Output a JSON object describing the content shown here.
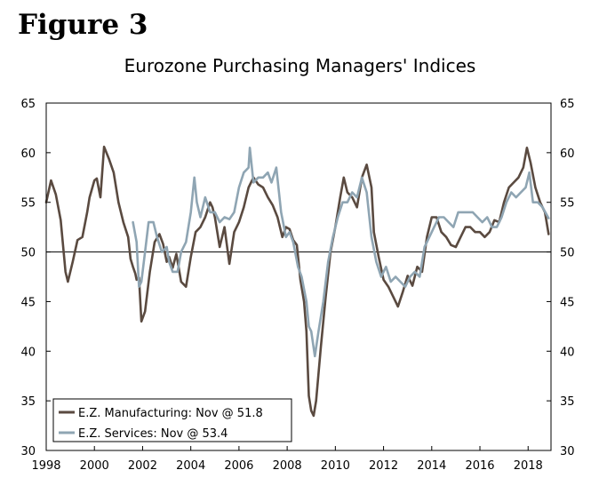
{
  "figure_label": "Figure 3",
  "chart_data": {
    "type": "line",
    "title": "Eurozone Purchasing Managers' Indices",
    "xlabel": "",
    "ylabel": "",
    "xlim": [
      1998,
      2018.95
    ],
    "ylim": [
      30,
      65
    ],
    "y_ticks": [
      30,
      35,
      40,
      45,
      50,
      55,
      60,
      65
    ],
    "x_ticks": [
      1998,
      2000,
      2002,
      2004,
      2006,
      2008,
      2010,
      2012,
      2014,
      2016,
      2018
    ],
    "reference_line": 50,
    "grid": false,
    "legend_position": "bottom-left",
    "series": [
      {
        "name": "E.Z. Manufacturing: Nov @ 51.8",
        "color": "#5a4a40",
        "x": [
          1998.0,
          1998.2,
          1998.4,
          1998.6,
          1998.8,
          1998.9,
          1999.1,
          1999.3,
          1999.5,
          1999.7,
          1999.8,
          2000.0,
          2000.1,
          2000.25,
          2000.4,
          2000.6,
          2000.8,
          2001.0,
          2001.2,
          2001.4,
          2001.5,
          2001.6,
          2001.7,
          2001.75,
          2001.85,
          2001.95,
          2002.1,
          2002.3,
          2002.5,
          2002.7,
          2002.85,
          2003.0,
          2003.1,
          2003.25,
          2003.4,
          2003.6,
          2003.8,
          2004.0,
          2004.2,
          2004.4,
          2004.6,
          2004.8,
          2004.9,
          2005.0,
          2005.2,
          2005.4,
          2005.6,
          2005.8,
          2006.0,
          2006.2,
          2006.4,
          2006.6,
          2006.8,
          2007.0,
          2007.2,
          2007.4,
          2007.6,
          2007.8,
          2007.95,
          2008.1,
          2008.25,
          2008.4,
          2008.55,
          2008.7,
          2008.8,
          2008.9,
          2009.0,
          2009.1,
          2009.2,
          2009.4,
          2009.6,
          2009.8,
          2010.0,
          2010.2,
          2010.35,
          2010.5,
          2010.7,
          2010.9,
          2011.1,
          2011.3,
          2011.5,
          2011.6,
          2011.8,
          2012.0,
          2012.2,
          2012.4,
          2012.6,
          2012.8,
          2013.0,
          2013.2,
          2013.4,
          2013.6,
          2013.8,
          2014.0,
          2014.2,
          2014.4,
          2014.6,
          2014.8,
          2015.0,
          2015.2,
          2015.4,
          2015.6,
          2015.8,
          2016.0,
          2016.2,
          2016.4,
          2016.6,
          2016.8,
          2017.0,
          2017.2,
          2017.4,
          2017.6,
          2017.8,
          2017.95,
          2018.1,
          2018.3,
          2018.5,
          2018.7,
          2018.85
        ],
        "values": [
          55.0,
          57.2,
          55.8,
          53.2,
          48.0,
          47.0,
          49.0,
          51.2,
          51.5,
          54.0,
          55.5,
          57.2,
          57.4,
          55.5,
          60.6,
          59.4,
          58.0,
          55.0,
          53.0,
          51.5,
          49.3,
          48.5,
          47.8,
          47.2,
          47.4,
          43.0,
          44.0,
          48.0,
          51.0,
          51.8,
          50.8,
          49.0,
          49.5,
          48.4,
          49.8,
          47.0,
          46.5,
          49.5,
          52.0,
          52.5,
          53.5,
          55.0,
          54.5,
          53.5,
          50.5,
          52.5,
          48.8,
          52.0,
          53.0,
          54.5,
          56.5,
          57.5,
          56.8,
          56.5,
          55.5,
          54.7,
          53.5,
          51.5,
          52.5,
          52.3,
          51.2,
          50.7,
          47.2,
          45.0,
          42.0,
          35.5,
          34.0,
          33.5,
          35.0,
          40.5,
          45.5,
          50.0,
          52.5,
          55.5,
          57.5,
          56.0,
          55.5,
          54.5,
          57.5,
          58.8,
          56.5,
          52.0,
          49.5,
          47.2,
          46.5,
          45.5,
          44.5,
          46.0,
          47.6,
          46.6,
          48.5,
          48.0,
          51.5,
          53.5,
          53.5,
          52.0,
          51.5,
          50.7,
          50.5,
          51.5,
          52.5,
          52.5,
          52.0,
          52.0,
          51.5,
          52.0,
          53.2,
          53.0,
          55.0,
          56.5,
          57.0,
          57.5,
          58.5,
          60.5,
          59.0,
          56.5,
          55.0,
          54.0,
          51.8
        ]
      },
      {
        "name": "E.Z. Services: Nov @ 53.4",
        "color": "#8fa5b3",
        "x": [
          2001.6,
          2001.75,
          2001.85,
          2001.95,
          2002.1,
          2002.25,
          2002.45,
          2002.6,
          2002.8,
          2003.0,
          2003.1,
          2003.25,
          2003.45,
          2003.6,
          2003.8,
          2004.0,
          2004.15,
          2004.25,
          2004.4,
          2004.6,
          2004.8,
          2005.0,
          2005.2,
          2005.4,
          2005.6,
          2005.8,
          2006.0,
          2006.2,
          2006.4,
          2006.45,
          2006.6,
          2006.8,
          2007.0,
          2007.2,
          2007.35,
          2007.55,
          2007.75,
          2007.95,
          2008.1,
          2008.25,
          2008.45,
          2008.6,
          2008.8,
          2008.9,
          2009.0,
          2009.15,
          2009.3,
          2009.5,
          2009.7,
          2009.9,
          2010.1,
          2010.3,
          2010.5,
          2010.7,
          2010.9,
          2011.1,
          2011.3,
          2011.5,
          2011.7,
          2011.9,
          2012.1,
          2012.3,
          2012.5,
          2012.7,
          2012.9,
          2013.1,
          2013.3,
          2013.5,
          2013.7,
          2013.9,
          2014.1,
          2014.3,
          2014.5,
          2014.7,
          2014.9,
          2015.1,
          2015.3,
          2015.5,
          2015.7,
          2015.9,
          2016.1,
          2016.3,
          2016.5,
          2016.7,
          2016.9,
          2017.1,
          2017.3,
          2017.5,
          2017.7,
          2017.9,
          2018.05,
          2018.2,
          2018.4,
          2018.6,
          2018.85
        ],
        "values": [
          53.0,
          51.0,
          46.5,
          47.0,
          50.0,
          53.0,
          53.0,
          51.5,
          50.0,
          50.5,
          49.0,
          48.0,
          48.0,
          50.0,
          51.0,
          54.0,
          57.5,
          55.0,
          53.5,
          55.5,
          54.0,
          54.0,
          53.0,
          53.5,
          53.3,
          54.0,
          56.5,
          58.0,
          58.5,
          60.5,
          57.0,
          57.5,
          57.5,
          58.0,
          57.0,
          58.5,
          54.0,
          51.5,
          52.0,
          51.0,
          48.5,
          47.5,
          45.0,
          42.5,
          42.0,
          39.5,
          42.0,
          45.0,
          49.0,
          51.5,
          53.5,
          55.0,
          55.0,
          56.0,
          55.5,
          57.5,
          56.0,
          51.5,
          49.0,
          47.5,
          48.5,
          47.0,
          47.5,
          47.0,
          46.5,
          47.5,
          48.0,
          47.5,
          50.5,
          51.5,
          52.5,
          53.5,
          53.5,
          53.0,
          52.5,
          54.0,
          54.0,
          54.0,
          54.0,
          53.5,
          53.0,
          53.5,
          52.5,
          52.5,
          53.5,
          55.0,
          56.0,
          55.5,
          56.0,
          56.5,
          58.0,
          55.0,
          55.0,
          54.5,
          53.4
        ]
      }
    ]
  }
}
